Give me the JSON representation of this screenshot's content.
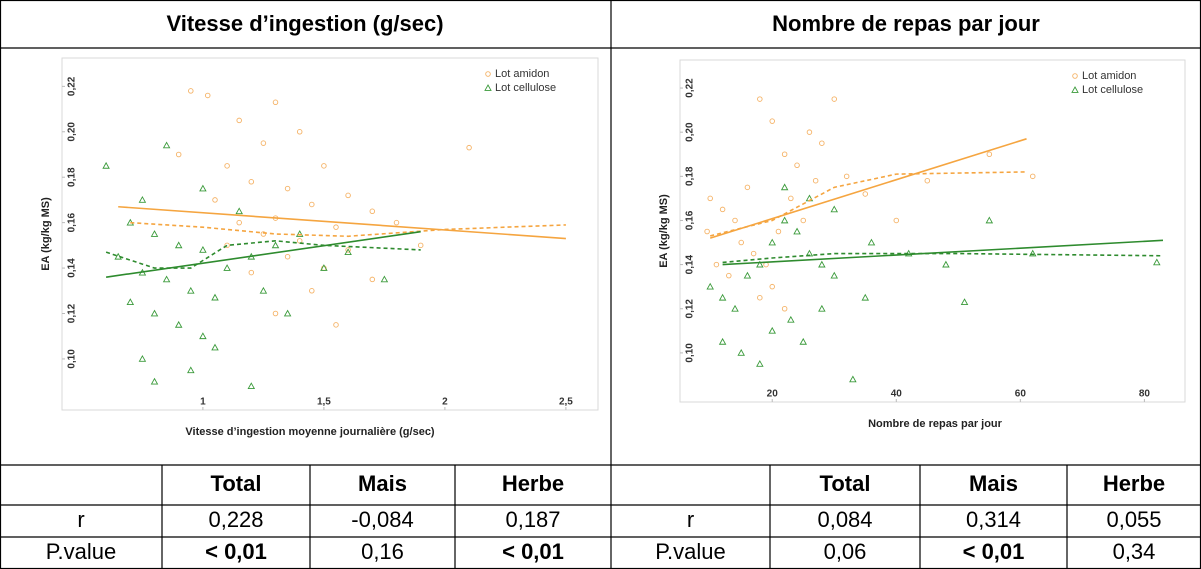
{
  "header": {
    "left": "Vitesse d’ingestion (g/sec)",
    "right": "Nombre de repas par jour"
  },
  "chart_data": [
    {
      "type": "scatter",
      "xlabel": "Vitesse d’ingestion moyenne journalière (g/sec)",
      "ylabel": "EA (kg/kg MS)",
      "xlim": [
        0.55,
        2.55
      ],
      "ylim": [
        0.085,
        0.225
      ],
      "xticks": [
        1,
        {
          "value": 1.5,
          "label": "1,5"
        },
        2,
        {
          "value": 2.5,
          "label": "2,5"
        }
      ],
      "yticks": [
        {
          "value": 0.1,
          "label": "0,10"
        },
        {
          "value": 0.12,
          "label": "0,12"
        },
        {
          "value": 0.14,
          "label": "0,14"
        },
        {
          "value": 0.16,
          "label": "0,16"
        },
        {
          "value": 0.18,
          "label": "0,18"
        },
        {
          "value": 0.2,
          "label": "0,20"
        },
        {
          "value": 0.22,
          "label": "0,22"
        }
      ],
      "legend": "top-right",
      "series": [
        {
          "name": "Lot amidon",
          "color": "#f5b367",
          "marker": "circle",
          "x": [
            0.95,
            1.02,
            1.3,
            1.15,
            1.4,
            1.25,
            0.9,
            1.1,
            1.5,
            1.2,
            1.35,
            1.6,
            1.05,
            1.45,
            1.7,
            1.3,
            1.15,
            1.55,
            1.8,
            1.25,
            1.4,
            1.1,
            1.6,
            1.35,
            1.5,
            1.2,
            1.7,
            1.45,
            2.1,
            1.9,
            1.55,
            1.3
          ],
          "values": [
            0.218,
            0.216,
            0.213,
            0.205,
            0.2,
            0.195,
            0.19,
            0.185,
            0.185,
            0.178,
            0.175,
            0.172,
            0.17,
            0.168,
            0.165,
            0.162,
            0.16,
            0.158,
            0.16,
            0.155,
            0.152,
            0.15,
            0.148,
            0.145,
            0.14,
            0.138,
            0.135,
            0.13,
            0.193,
            0.15,
            0.115,
            0.12
          ]
        },
        {
          "name": "Lot cellulose",
          "color": "#3a9a3a",
          "marker": "triangle",
          "x": [
            0.6,
            0.75,
            0.85,
            0.7,
            0.8,
            0.9,
            1.0,
            0.65,
            0.75,
            0.85,
            0.95,
            1.05,
            0.7,
            0.8,
            0.9,
            1.0,
            1.05,
            0.75,
            0.8,
            0.95,
            1.1,
            1.2,
            1.3,
            1.4,
            1.15,
            1.0,
            1.25,
            1.5,
            1.6,
            1.75,
            1.2,
            1.35
          ],
          "values": [
            0.185,
            0.17,
            0.194,
            0.16,
            0.155,
            0.15,
            0.148,
            0.145,
            0.138,
            0.135,
            0.13,
            0.127,
            0.125,
            0.12,
            0.115,
            0.11,
            0.105,
            0.1,
            0.09,
            0.095,
            0.14,
            0.145,
            0.15,
            0.155,
            0.165,
            0.175,
            0.13,
            0.14,
            0.147,
            0.135,
            0.088,
            0.12
          ]
        }
      ],
      "fits": [
        {
          "color": "#f5a540",
          "dashed": false,
          "x": [
            0.65,
            2.5
          ],
          "values": [
            0.167,
            0.153
          ]
        },
        {
          "color": "#f5a540",
          "dashed": true,
          "x": [
            0.7,
            1.0,
            1.3,
            1.6,
            2.0,
            2.5
          ],
          "values": [
            0.16,
            0.158,
            0.155,
            0.154,
            0.157,
            0.159
          ]
        },
        {
          "color": "#2e8b2e",
          "dashed": false,
          "x": [
            0.6,
            1.9
          ],
          "values": [
            0.136,
            0.156
          ]
        },
        {
          "color": "#2e8b2e",
          "dashed": true,
          "x": [
            0.6,
            0.8,
            0.95,
            1.1,
            1.3,
            1.5,
            1.7,
            1.9
          ],
          "values": [
            0.147,
            0.14,
            0.14,
            0.15,
            0.152,
            0.15,
            0.149,
            0.148
          ]
        }
      ]
    },
    {
      "type": "scatter",
      "xlabel": "Nombre de repas par jour",
      "ylabel": "EA (kg/kg MS)",
      "xlim": [
        9,
        83
      ],
      "ylim": [
        0.085,
        0.225
      ],
      "xticks": [
        20,
        40,
        60,
        80
      ],
      "yticks": [
        {
          "value": 0.1,
          "label": "0,10"
        },
        {
          "value": 0.12,
          "label": "0,12"
        },
        {
          "value": 0.14,
          "label": "0,14"
        },
        {
          "value": 0.16,
          "label": "0,16"
        },
        {
          "value": 0.18,
          "label": "0,18"
        },
        {
          "value": 0.2,
          "label": "0,20"
        },
        {
          "value": 0.22,
          "label": "0,22"
        }
      ],
      "legend": "top-right",
      "series": [
        {
          "name": "Lot amidon",
          "color": "#f5b367",
          "marker": "circle",
          "x": [
            10,
            12,
            14,
            16,
            18,
            20,
            22,
            24,
            26,
            28,
            30,
            15,
            17,
            19,
            21,
            23,
            25,
            27,
            9.5,
            11,
            13,
            20,
            32,
            35,
            40,
            45,
            55,
            62,
            18,
            22
          ],
          "values": [
            0.17,
            0.165,
            0.16,
            0.175,
            0.215,
            0.205,
            0.19,
            0.185,
            0.2,
            0.195,
            0.215,
            0.15,
            0.145,
            0.14,
            0.155,
            0.17,
            0.16,
            0.178,
            0.155,
            0.14,
            0.135,
            0.13,
            0.18,
            0.172,
            0.16,
            0.178,
            0.19,
            0.18,
            0.125,
            0.12
          ]
        },
        {
          "name": "Lot cellulose",
          "color": "#3a9a3a",
          "marker": "triangle",
          "x": [
            10,
            12,
            14,
            16,
            18,
            20,
            22,
            24,
            26,
            28,
            30,
            12,
            15,
            18,
            20,
            23,
            25,
            28,
            33,
            35,
            22,
            26,
            30,
            36,
            42,
            48,
            51,
            55,
            62,
            82
          ],
          "values": [
            0.13,
            0.125,
            0.12,
            0.135,
            0.14,
            0.15,
            0.16,
            0.155,
            0.145,
            0.14,
            0.135,
            0.105,
            0.1,
            0.095,
            0.11,
            0.115,
            0.105,
            0.12,
            0.088,
            0.125,
            0.175,
            0.17,
            0.165,
            0.15,
            0.145,
            0.14,
            0.123,
            0.16,
            0.145,
            0.141
          ]
        }
      ],
      "fits": [
        {
          "color": "#f5a540",
          "dashed": false,
          "x": [
            10,
            61
          ],
          "values": [
            0.152,
            0.197
          ]
        },
        {
          "color": "#f5a540",
          "dashed": true,
          "x": [
            10,
            20,
            30,
            40,
            61
          ],
          "values": [
            0.153,
            0.16,
            0.175,
            0.181,
            0.182
          ]
        },
        {
          "color": "#2e8b2e",
          "dashed": false,
          "x": [
            12,
            83
          ],
          "values": [
            0.14,
            0.151
          ]
        },
        {
          "color": "#2e8b2e",
          "dashed": true,
          "x": [
            12,
            20,
            30,
            50,
            83
          ],
          "values": [
            0.141,
            0.143,
            0.145,
            0.145,
            0.144
          ]
        }
      ]
    }
  ],
  "tables": [
    {
      "columns": [
        "Total",
        "Mais",
        "Herbe"
      ],
      "rows": [
        {
          "label": "r",
          "cells": [
            "0,228",
            "-0,084",
            "0,187"
          ],
          "bold": [
            false,
            false,
            false
          ]
        },
        {
          "label": "P.value",
          "cells": [
            "< 0,01",
            "0,16",
            "< 0,01"
          ],
          "bold": [
            true,
            false,
            true
          ]
        }
      ]
    },
    {
      "columns": [
        "Total",
        "Mais",
        "Herbe"
      ],
      "rows": [
        {
          "label": "r",
          "cells": [
            "0,084",
            "0,314",
            "0,055"
          ],
          "bold": [
            false,
            false,
            false
          ]
        },
        {
          "label": "P.value",
          "cells": [
            "0,06",
            "< 0,01",
            "0,34"
          ],
          "bold": [
            false,
            true,
            false
          ]
        }
      ]
    }
  ]
}
